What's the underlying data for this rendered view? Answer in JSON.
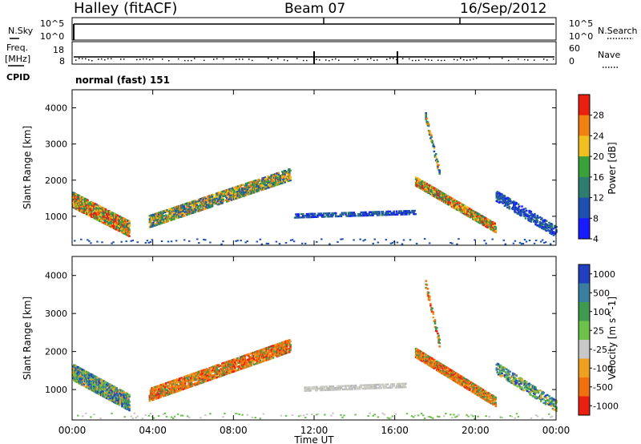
{
  "header": {
    "station": "Halley (fitACF)",
    "beam": "Beam 07",
    "date": "16/Sep/2012"
  },
  "sky_panel": {
    "left_label": "N.Sky",
    "left_ticks": [
      "10^5",
      "10^0"
    ],
    "right_ticks": [
      "10^5",
      "10^0"
    ],
    "right_label": "N.Search"
  },
  "freq_panel": {
    "left_label_1": "Freq.",
    "left_label_2": "[MHz]",
    "left_ticks": [
      "18",
      "8"
    ],
    "right_ticks": [
      "60",
      "0"
    ],
    "right_label": "Nave"
  },
  "cpid_label": "CPID",
  "cpid_value": "normal (fast) 151",
  "chart_data": [
    {
      "type": "heatmap",
      "name": "power",
      "ylabel": "Slant Range [km]",
      "ylim": [
        200,
        4500
      ],
      "yticks": [
        "1000",
        "2000",
        "3000",
        "4000"
      ],
      "colorbar_label": "Power [dB]",
      "colorbar_ticks": [
        "4",
        "8",
        "12",
        "16",
        "20",
        "24",
        "28"
      ],
      "colorbar_colors": [
        "#1a1aff",
        "#1f4fb0",
        "#2e7d6e",
        "#3aa03a",
        "#f0c020",
        "#f08010",
        "#e82010"
      ],
      "x_hours_range": [
        0,
        24
      ],
      "scatter_regions": [
        {
          "t0": 0.0,
          "t1": 2.8,
          "r0": 1500,
          "r1": 700,
          "w": 450,
          "density": 0.85,
          "pal": "warm"
        },
        {
          "t0": 3.8,
          "t1": 10.8,
          "r0": 900,
          "r1": 2200,
          "w": 350,
          "density": 0.75,
          "pal": "mid"
        },
        {
          "t0": 11.0,
          "t1": 17.0,
          "r0": 1050,
          "r1": 1150,
          "w": 120,
          "density": 0.55,
          "pal": "cool"
        },
        {
          "t0": 17.0,
          "t1": 21.0,
          "r0": 2000,
          "r1": 700,
          "w": 250,
          "density": 0.85,
          "pal": "warm"
        },
        {
          "t0": 17.5,
          "t1": 18.2,
          "r0": 3800,
          "r1": 2200,
          "w": 200,
          "density": 0.6,
          "pal": "mid"
        },
        {
          "t0": 21.0,
          "t1": 24.0,
          "r0": 1600,
          "r1": 600,
          "w": 300,
          "density": 0.5,
          "pal": "cool"
        }
      ]
    },
    {
      "type": "heatmap",
      "name": "velocity",
      "ylabel": "Slant Range [km]",
      "ylim": [
        200,
        4500
      ],
      "yticks": [
        "1000",
        "2000",
        "3000",
        "4000"
      ],
      "colorbar_label": "Velocity [m s^-1]",
      "colorbar_ticks": [
        "1000",
        "500",
        "100",
        "25",
        "-25",
        "-100",
        "-500",
        "-1000"
      ],
      "colorbar_colors": [
        "#2040c0",
        "#3b7fa0",
        "#3f9a50",
        "#6cc24a",
        "#c8c8c8",
        "#f0a020",
        "#f07010",
        "#e82010"
      ],
      "x_hours_range": [
        0,
        24
      ],
      "scatter_regions": [
        {
          "t0": 0.0,
          "t1": 2.8,
          "r0": 1500,
          "r1": 700,
          "w": 450,
          "density": 0.85,
          "pal": "greenblue"
        },
        {
          "t0": 3.8,
          "t1": 10.8,
          "r0": 900,
          "r1": 2200,
          "w": 350,
          "density": 0.75,
          "pal": "orange"
        },
        {
          "t0": 11.5,
          "t1": 16.5,
          "r0": 1050,
          "r1": 1150,
          "w": 120,
          "density": 0.6,
          "pal": "grey"
        },
        {
          "t0": 17.0,
          "t1": 21.0,
          "r0": 2000,
          "r1": 700,
          "w": 250,
          "density": 0.85,
          "pal": "orange"
        },
        {
          "t0": 17.5,
          "t1": 18.2,
          "r0": 3800,
          "r1": 2200,
          "w": 200,
          "density": 0.6,
          "pal": "orange"
        },
        {
          "t0": 21.0,
          "t1": 24.0,
          "r0": 1600,
          "r1": 600,
          "w": 300,
          "density": 0.5,
          "pal": "greenblue"
        }
      ]
    }
  ],
  "x_axis": {
    "ticks": [
      "00:00",
      "04:00",
      "08:00",
      "12:00",
      "16:00",
      "20:00",
      "00:00"
    ],
    "label": "Time UT"
  }
}
